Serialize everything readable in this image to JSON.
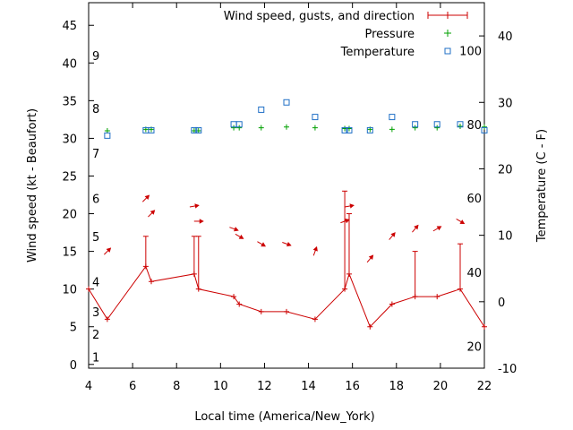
{
  "chart_data": {
    "type": "line",
    "xlabel": "Local time (America/New_York)",
    "ylabel": "Wind speed (kt - Beaufort)",
    "y2label": "Temperature (C - F)",
    "xlim": [
      4,
      22
    ],
    "ylim": [
      -0.5,
      48
    ],
    "y2lim": [
      -10,
      45
    ],
    "x_ticks": [
      4,
      6,
      8,
      10,
      12,
      14,
      16,
      18,
      20,
      22
    ],
    "y_ticks": [
      0,
      5,
      10,
      15,
      20,
      25,
      30,
      35,
      40,
      45
    ],
    "y2_ticks": [
      -10,
      0,
      10,
      20,
      30,
      40
    ],
    "beaufort_labels": [
      {
        "label": "1",
        "kt": 1
      },
      {
        "label": "2",
        "kt": 4
      },
      {
        "label": "3",
        "kt": 7
      },
      {
        "label": "4",
        "kt": 11
      },
      {
        "label": "5",
        "kt": 17
      },
      {
        "label": "6",
        "kt": 22
      },
      {
        "label": "7",
        "kt": 28
      },
      {
        "label": "8",
        "kt": 34
      },
      {
        "label": "9",
        "kt": 41
      }
    ],
    "fahrenheit_labels": [
      {
        "label": "20",
        "c": -6.7
      },
      {
        "label": "40",
        "c": 4.4
      },
      {
        "label": "60",
        "c": 15.6
      },
      {
        "label": "80",
        "c": 26.7
      },
      {
        "label": "100",
        "c": 37.8
      }
    ],
    "legend": [
      {
        "name": "Wind speed, gusts, and direction",
        "color": "#cc0000"
      },
      {
        "name": "Pressure",
        "color": "#00a000"
      },
      {
        "name": "Temperature",
        "color": "#1f6fc6"
      }
    ],
    "wind": [
      {
        "x": 4.0,
        "speed": 10,
        "gust": null,
        "dir": null
      },
      {
        "x": 4.85,
        "speed": 6,
        "gust": null,
        "dir": 225
      },
      {
        "x": 6.6,
        "speed": 13,
        "gust": 17,
        "dir": 225
      },
      {
        "x": 6.85,
        "speed": 11,
        "gust": null,
        "dir": 225
      },
      {
        "x": 8.8,
        "speed": 12,
        "gust": 17,
        "dir": 260
      },
      {
        "x": 9.0,
        "speed": 10,
        "gust": 17,
        "dir": 270
      },
      {
        "x": 10.6,
        "speed": 9,
        "gust": null,
        "dir": 290
      },
      {
        "x": 10.85,
        "speed": 8,
        "gust": null,
        "dir": 300
      },
      {
        "x": 11.85,
        "speed": 7,
        "gust": null,
        "dir": 300
      },
      {
        "x": 13.0,
        "speed": 7,
        "gust": null,
        "dir": 290
      },
      {
        "x": 14.3,
        "speed": 6,
        "gust": null,
        "dir": 200
      },
      {
        "x": 15.65,
        "speed": 10,
        "gust": 23,
        "dir": 250
      },
      {
        "x": 15.85,
        "speed": 12,
        "gust": 20,
        "dir": 260
      },
      {
        "x": 16.8,
        "speed": 5,
        "gust": null,
        "dir": 220
      },
      {
        "x": 17.8,
        "speed": 8,
        "gust": null,
        "dir": 220
      },
      {
        "x": 18.85,
        "speed": 9,
        "gust": 15,
        "dir": 220
      },
      {
        "x": 19.85,
        "speed": 9,
        "gust": null,
        "dir": 240
      },
      {
        "x": 20.9,
        "speed": 10,
        "gust": 16,
        "dir": 300
      },
      {
        "x": 22.0,
        "speed": 5,
        "gust": null,
        "dir": null
      }
    ],
    "pressure": [
      {
        "x": 4.85,
        "y": 31.0
      },
      {
        "x": 6.6,
        "y": 31.2
      },
      {
        "x": 6.85,
        "y": 31.2
      },
      {
        "x": 8.8,
        "y": 31.0
      },
      {
        "x": 9.0,
        "y": 31.0
      },
      {
        "x": 10.6,
        "y": 31.4
      },
      {
        "x": 10.85,
        "y": 31.4
      },
      {
        "x": 11.85,
        "y": 31.4
      },
      {
        "x": 13.0,
        "y": 31.5
      },
      {
        "x": 14.3,
        "y": 31.4
      },
      {
        "x": 15.65,
        "y": 31.3
      },
      {
        "x": 15.85,
        "y": 31.3
      },
      {
        "x": 16.8,
        "y": 31.2
      },
      {
        "x": 17.8,
        "y": 31.2
      },
      {
        "x": 18.85,
        "y": 31.4
      },
      {
        "x": 19.85,
        "y": 31.4
      },
      {
        "x": 20.9,
        "y": 31.6
      },
      {
        "x": 22.0,
        "y": 31.5
      }
    ],
    "temperature": [
      {
        "x": 4.85,
        "c": 25.0
      },
      {
        "x": 6.6,
        "c": 25.8
      },
      {
        "x": 6.85,
        "c": 25.8
      },
      {
        "x": 8.8,
        "c": 25.8
      },
      {
        "x": 9.0,
        "c": 25.8
      },
      {
        "x": 10.6,
        "c": 26.7
      },
      {
        "x": 10.85,
        "c": 26.7
      },
      {
        "x": 11.85,
        "c": 28.9
      },
      {
        "x": 13.0,
        "c": 30.0
      },
      {
        "x": 14.3,
        "c": 27.8
      },
      {
        "x": 15.65,
        "c": 25.8
      },
      {
        "x": 15.85,
        "c": 25.8
      },
      {
        "x": 16.8,
        "c": 25.8
      },
      {
        "x": 17.8,
        "c": 27.8
      },
      {
        "x": 18.85,
        "c": 26.7
      },
      {
        "x": 19.85,
        "c": 26.7
      },
      {
        "x": 20.9,
        "c": 26.7
      },
      {
        "x": 22.0,
        "c": 25.8
      }
    ]
  }
}
